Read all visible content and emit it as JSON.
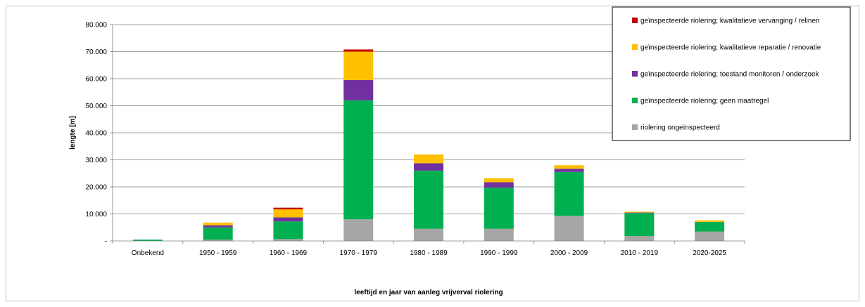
{
  "chart_data": {
    "type": "bar",
    "stacked": true,
    "xlabel": "leeftijd en jaar van aanleg vrijverval riolering",
    "ylabel": "lengte [m]",
    "ylim": [
      0,
      80000
    ],
    "yticks": [
      0,
      10000,
      20000,
      30000,
      40000,
      50000,
      60000,
      70000,
      80000
    ],
    "ytick_labels": [
      "-",
      "10.000",
      "20.000",
      "30.000",
      "40.000",
      "50.000",
      "60.000",
      "70.000",
      "80.000"
    ],
    "grid": true,
    "legend_position": "top-right",
    "categories": [
      "Onbekend",
      "1950 - 1959",
      "1960 - 1969",
      "1970 - 1979",
      "1980 - 1989",
      "1990 - 1999",
      "2000 - 2009",
      "2010 - 2019",
      "2020-2025"
    ],
    "series": [
      {
        "name": "riolering ongeïnspecteerd",
        "color": "#a6a6a6",
        "values": [
          0,
          500,
          700,
          8000,
          4500,
          4500,
          9300,
          1800,
          3500
        ]
      },
      {
        "name": "geïnspecteerde riolering; geen maatregel",
        "color": "#00b050",
        "values": [
          500,
          4500,
          6500,
          44000,
          21500,
          15200,
          16200,
          8500,
          3500
        ]
      },
      {
        "name": "geïnspecteerde riolering; toestand monitoren / onderzoek",
        "color": "#7030a0",
        "values": [
          0,
          800,
          1500,
          7500,
          2700,
          2000,
          1200,
          200,
          0
        ]
      },
      {
        "name": "geïnspecteerde riolering; kwalitatieve reparatie / renovatie",
        "color": "#ffc000",
        "values": [
          0,
          1000,
          3000,
          10500,
          3300,
          1500,
          1300,
          300,
          600
        ]
      },
      {
        "name": "geïnspecteerde riolering; kwalitatieve vervanging / relinen",
        "color": "#c00000",
        "values": [
          0,
          0,
          600,
          800,
          0,
          0,
          0,
          0,
          0
        ]
      }
    ]
  }
}
